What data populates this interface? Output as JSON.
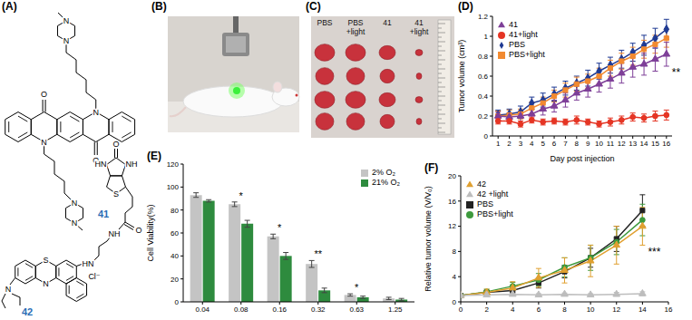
{
  "panels": [
    {
      "label": "(A)",
      "compounds": [
        {
          "name": "41",
          "atoms": [
            "N",
            "N",
            "N",
            "O",
            "O",
            "N",
            "N",
            "N"
          ]
        },
        {
          "name": "42",
          "atoms": [
            "N",
            "S",
            "N",
            "HN",
            "Cl⁻",
            "NH",
            "O",
            "O",
            "HN",
            "NH",
            "S"
          ]
        }
      ]
    },
    {
      "label": "(B)"
    },
    {
      "label": "(C)",
      "groups": [
        "PBS",
        "PBS +light",
        "41",
        "41 +light"
      ]
    }
  ],
  "chart_data": [
    {
      "type": "line",
      "title": "(D)",
      "x_label": "Day post injection",
      "y_label": "Tumor volume (cm³)",
      "x": [
        1,
        2,
        3,
        4,
        5,
        6,
        7,
        8,
        9,
        10,
        11,
        12,
        13,
        14,
        15,
        16
      ],
      "xlim": [
        0.5,
        16.5
      ],
      "xticks": [
        1,
        2,
        3,
        4,
        5,
        6,
        7,
        8,
        9,
        10,
        11,
        12,
        13,
        14,
        15,
        16
      ],
      "ylim": [
        0,
        1.2
      ],
      "yticks": [
        0,
        0.2,
        0.4,
        0.6,
        0.8,
        1,
        1.2
      ],
      "legend": "upper left",
      "series": [
        {
          "name": "PBS",
          "color": "#1f3a93",
          "marker": "diamond",
          "values": [
            0.21,
            0.22,
            0.24,
            0.33,
            0.36,
            0.42,
            0.48,
            0.53,
            0.58,
            0.65,
            0.71,
            0.77,
            0.84,
            0.91,
            0.98,
            1.07
          ],
          "errors": [
            0.05,
            0.05,
            0.06,
            0.06,
            0.07,
            0.07,
            0.07,
            0.07,
            0.08,
            0.08,
            0.08,
            0.09,
            0.09,
            0.1,
            0.1,
            0.1
          ]
        },
        {
          "name": "PBS+light",
          "color": "#f28a30",
          "marker": "square",
          "values": [
            0.2,
            0.21,
            0.22,
            0.28,
            0.33,
            0.4,
            0.46,
            0.52,
            0.55,
            0.6,
            0.68,
            0.75,
            0.8,
            0.87,
            0.92,
            0.98
          ],
          "errors": [
            0.05,
            0.05,
            0.05,
            0.06,
            0.06,
            0.06,
            0.07,
            0.07,
            0.07,
            0.08,
            0.08,
            0.08,
            0.09,
            0.09,
            0.09,
            0.09
          ]
        },
        {
          "name": "41",
          "color": "#7e3f98",
          "marker": "triangle",
          "values": [
            0.2,
            0.19,
            0.2,
            0.22,
            0.27,
            0.3,
            0.36,
            0.43,
            0.47,
            0.52,
            0.57,
            0.63,
            0.69,
            0.72,
            0.77,
            0.82
          ],
          "errors": [
            0.04,
            0.04,
            0.05,
            0.05,
            0.06,
            0.06,
            0.07,
            0.07,
            0.08,
            0.08,
            0.09,
            0.1,
            0.1,
            0.11,
            0.12,
            0.12
          ]
        },
        {
          "name": "41+light",
          "color": "#e53524",
          "marker": "circle",
          "values": [
            0.15,
            0.15,
            0.12,
            0.16,
            0.14,
            0.15,
            0.14,
            0.16,
            0.14,
            0.12,
            0.14,
            0.16,
            0.19,
            0.18,
            0.2,
            0.21
          ],
          "errors": [
            0.03,
            0.03,
            0.03,
            0.03,
            0.03,
            0.03,
            0.03,
            0.04,
            0.03,
            0.03,
            0.04,
            0.04,
            0.04,
            0.04,
            0.05,
            0.05
          ]
        }
      ],
      "annotations": [
        {
          "text": "**"
        }
      ]
    },
    {
      "type": "bar",
      "title": "(E)",
      "y_label": "Cell Viability(%)",
      "categories": [
        "0.04",
        "0.08",
        "0.16",
        "0.32",
        "0.63",
        "1.25"
      ],
      "ylim": [
        0,
        120
      ],
      "yticks": [
        0,
        20,
        40,
        60,
        80,
        100,
        120
      ],
      "legend": "upper right",
      "series": [
        {
          "name": "2% O₂",
          "color": "#c4c4c4",
          "values": [
            93,
            85,
            57,
            33,
            6,
            3
          ],
          "errors": [
            2,
            2,
            2,
            3,
            1,
            1
          ]
        },
        {
          "name": "21% O₂",
          "color": "#2e8b3e",
          "values": [
            88,
            68,
            40,
            10,
            4,
            2
          ],
          "errors": [
            1,
            3,
            3,
            2,
            1,
            1
          ]
        }
      ],
      "annotations": [
        {
          "category": "0.08",
          "text": "*"
        },
        {
          "category": "0.16",
          "text": "*"
        },
        {
          "category": "0.32",
          "text": "**"
        },
        {
          "category": "0.63",
          "text": "*"
        }
      ]
    },
    {
      "type": "line",
      "title": "(F)",
      "y_label": "Relative tumor volume (V/V₀)",
      "x": [
        0,
        2,
        4,
        6,
        8,
        10,
        12,
        14
      ],
      "xlim": [
        0,
        16
      ],
      "xticks": [
        0,
        2,
        4,
        6,
        8,
        10,
        12,
        14,
        16
      ],
      "ylim": [
        0,
        20
      ],
      "yticks": [
        0,
        4,
        8,
        12,
        16,
        20
      ],
      "legend": "upper left",
      "series": [
        {
          "name": "PBS",
          "color": "#222222",
          "marker": "square",
          "values": [
            1,
            1.5,
            1.8,
            3,
            4.8,
            7,
            10,
            14.5
          ],
          "errors": [
            0,
            0.3,
            0.5,
            0.8,
            1,
            1.5,
            2,
            2.5
          ]
        },
        {
          "name": "PBS+light",
          "color": "#3d9a3d",
          "marker": "circle",
          "values": [
            1,
            1.6,
            2.5,
            3.5,
            5.5,
            7,
            9.5,
            13
          ],
          "errors": [
            0,
            0.4,
            0.6,
            1,
            1.5,
            2,
            2,
            2.5
          ]
        },
        {
          "name": "42",
          "color": "#e0a030",
          "marker": "triangle",
          "values": [
            1,
            1.5,
            2.2,
            3.8,
            5,
            6.5,
            9,
            12
          ],
          "errors": [
            0,
            0.5,
            1,
            1.5,
            2,
            2.5,
            3,
            3
          ]
        },
        {
          "name": "42 +light",
          "color": "#bdbdbd",
          "marker": "triangle",
          "values": [
            1,
            1.1,
            1.2,
            1.1,
            1.2,
            1.1,
            1.2,
            1.3
          ],
          "errors": [
            0,
            0.1,
            0.2,
            0.2,
            0.2,
            0.2,
            0.3,
            0.3
          ]
        }
      ],
      "annotations": [
        {
          "text": "***"
        }
      ]
    }
  ]
}
